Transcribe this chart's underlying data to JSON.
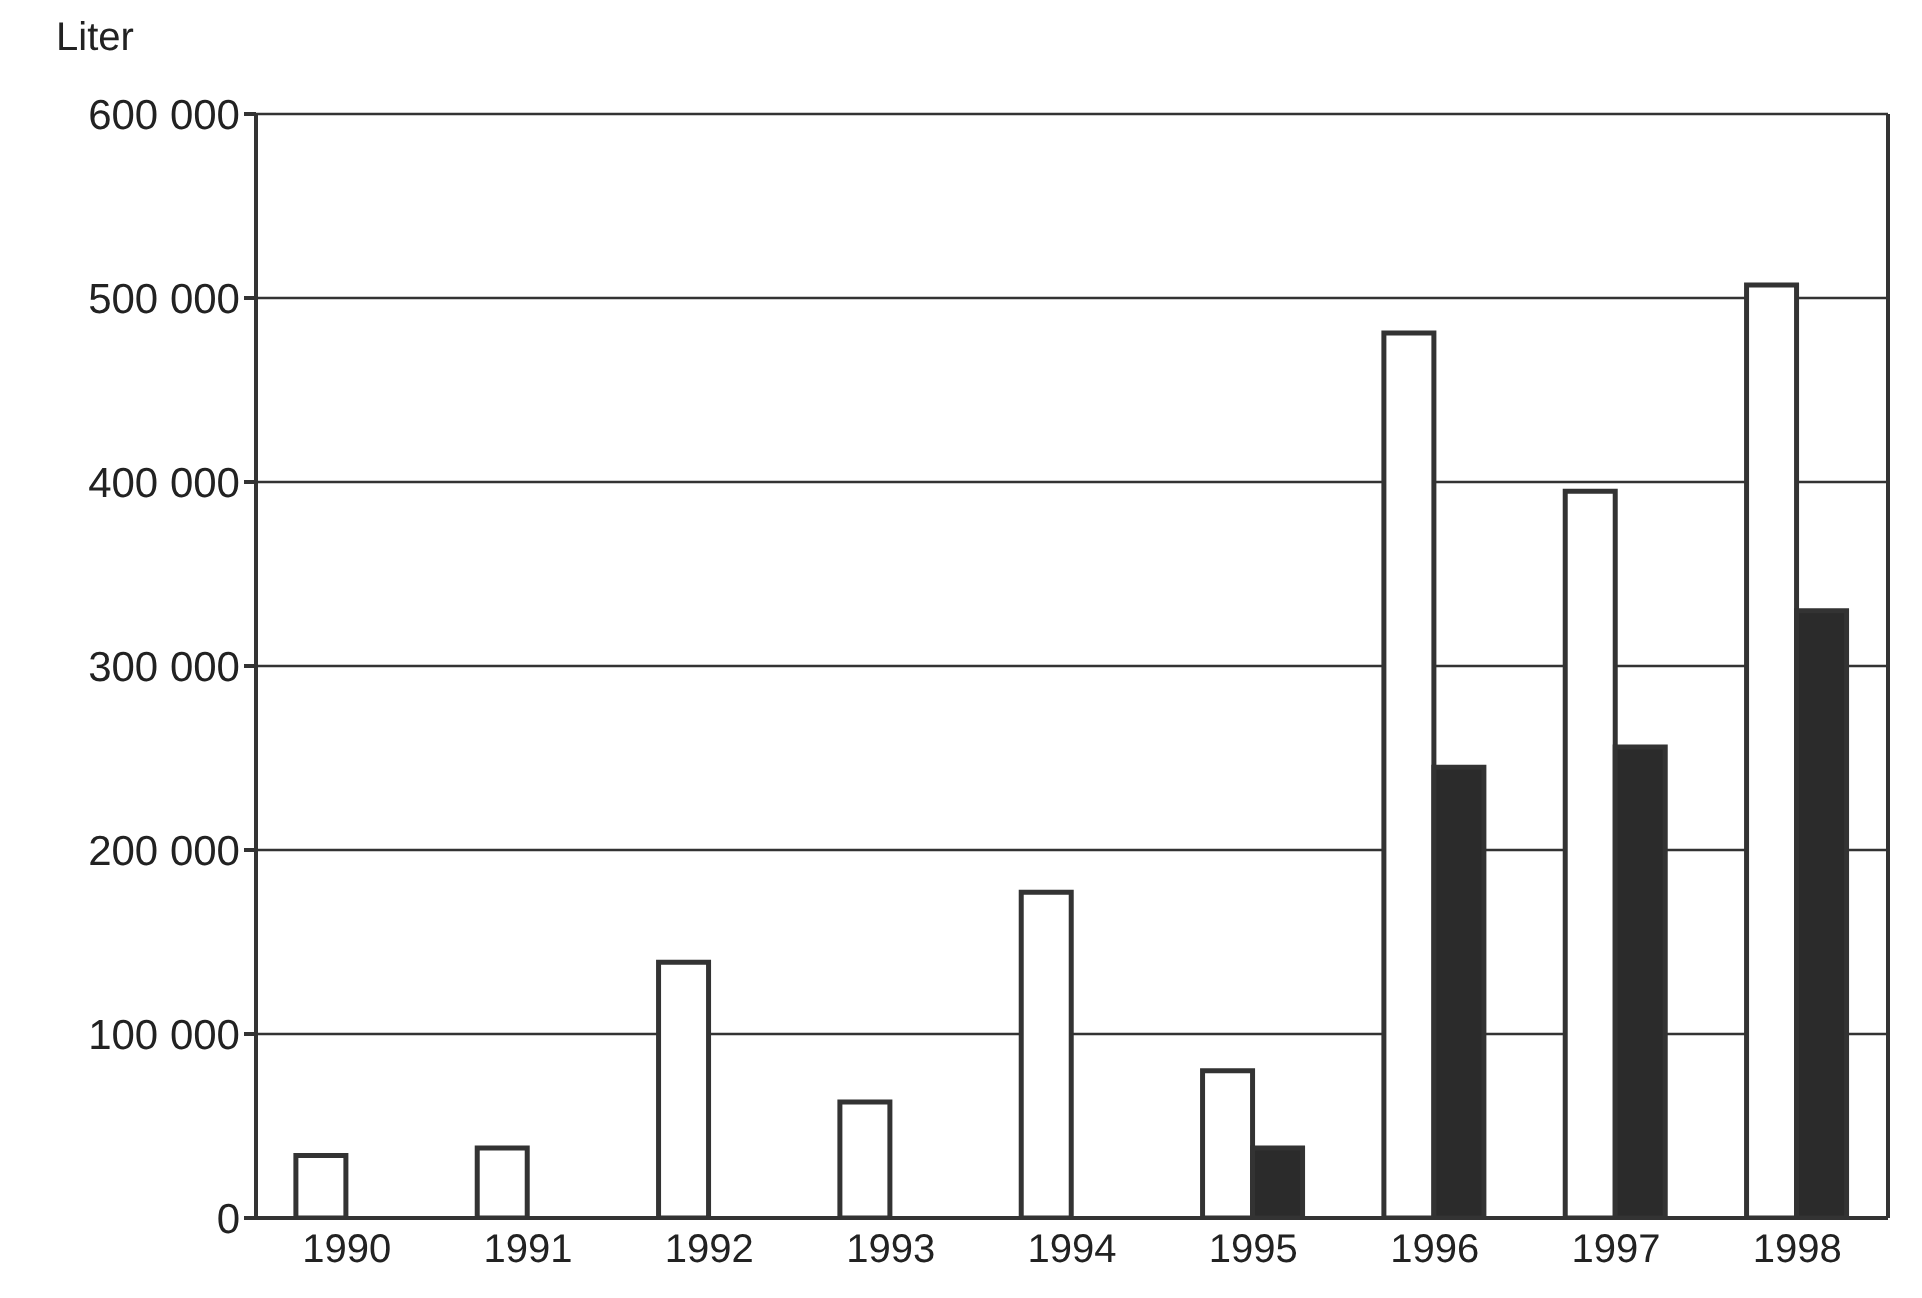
{
  "chart_data": {
    "type": "bar",
    "ylabel": "Liter",
    "categories": [
      "1990",
      "1991",
      "1992",
      "1993",
      "1994",
      "1995",
      "1996",
      "1997",
      "1998"
    ],
    "series": [
      {
        "color": "#ffffff",
        "values": [
          34000,
          38000,
          139000,
          63000,
          177000,
          80000,
          481000,
          395000,
          507000
        ]
      },
      {
        "color": "#2b2b2b",
        "values": [
          null,
          null,
          null,
          null,
          null,
          38000,
          245000,
          256000,
          330000
        ]
      }
    ],
    "ylim": [
      0,
      600000
    ],
    "yticks": [
      {
        "value": 0,
        "label": "0"
      },
      {
        "value": 100000,
        "label": "100 000"
      },
      {
        "value": 200000,
        "label": "200 000"
      },
      {
        "value": 300000,
        "label": "300 000"
      },
      {
        "value": 400000,
        "label": "400 000"
      },
      {
        "value": 500000,
        "label": "500 000"
      },
      {
        "value": 600000,
        "label": "600 000"
      }
    ],
    "grid": "y",
    "legend": false
  }
}
